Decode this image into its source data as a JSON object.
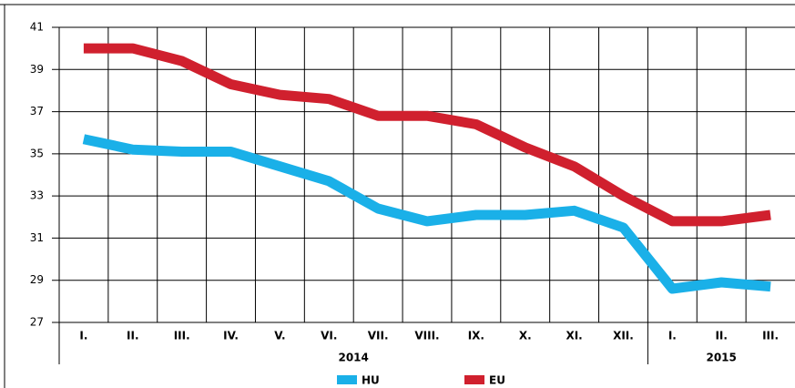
{
  "chart_data": {
    "type": "line",
    "categories": [
      "I.",
      "II.",
      "III.",
      "IV.",
      "V.",
      "VI.",
      "VII.",
      "VIII.",
      "IX.",
      "X.",
      "XI.",
      "XII.",
      "I.",
      "II.",
      "III."
    ],
    "year_labels": [
      "2014",
      "2015"
    ],
    "series": [
      {
        "name": "HU",
        "color": "#1ab0e8",
        "values": [
          35.7,
          35.2,
          35.1,
          35.1,
          34.4,
          33.7,
          32.4,
          31.8,
          32.1,
          32.1,
          32.3,
          31.5,
          28.6,
          28.9,
          28.7
        ]
      },
      {
        "name": "EU",
        "color": "#d0202e",
        "values": [
          40,
          40,
          39.4,
          38.3,
          37.8,
          37.6,
          36.8,
          36.8,
          36.4,
          35.3,
          34.4,
          33.0,
          31.8,
          31.8,
          32.1
        ]
      }
    ],
    "ylim": [
      27,
      41
    ],
    "yticks": [
      27,
      29,
      31,
      33,
      35,
      37,
      39,
      41
    ],
    "grid": true,
    "legend": "bottom"
  }
}
